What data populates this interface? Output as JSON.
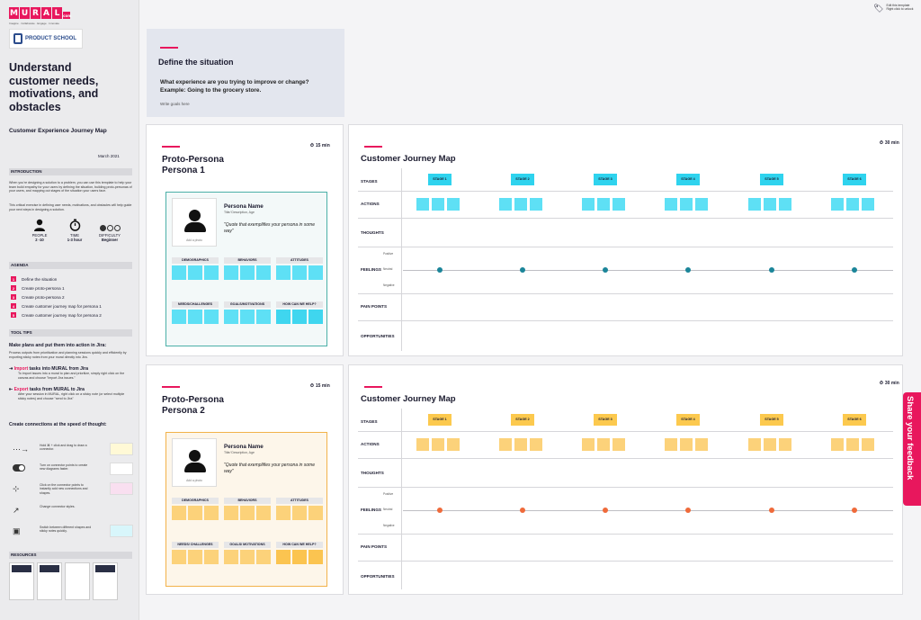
{
  "colors": {
    "accent": "#e8175d",
    "cyan": "#5ee0f5",
    "yellow": "#fcd27a",
    "teal": "#1b8599",
    "orange": "#ef6a3a"
  },
  "sidebar": {
    "logo_letters": [
      "M",
      "U",
      "R",
      "A",
      "L"
    ],
    "logo_suffix": ".com",
    "tagline": "Imagine · Collaborate · Engage · Innovate",
    "partner": "PRODUCT SCHOOL",
    "title": "Understand customer needs, motivations, and obstacles",
    "subtitle": "Customer Experience Journey Map",
    "date": "March 2021",
    "intro_header": "INTRODUCTION",
    "intro_p1": "When you're designing a solution to a problem, you can use this template to help your team build empathy for your users by defining the situation, building proto-personas of your users, and mapping out stages of the situation your users face.",
    "intro_p2": "This critical exercise in defining user needs, motivations, and obstacles will help guide your next steps in designing a solution.",
    "stats": [
      {
        "icon": "person-icon",
        "label": "PEOPLE",
        "value": "2 -10"
      },
      {
        "icon": "stopwatch-icon",
        "label": "TIME",
        "value": "1-3 hour"
      },
      {
        "icon": "difficulty-icon",
        "label": "DIFFICULTY",
        "value": "Beginner"
      }
    ],
    "agenda_header": "AGENDA",
    "agenda": [
      {
        "num": "1",
        "text": "Define the situation"
      },
      {
        "num": "2",
        "text": "Create proto-persona 1"
      },
      {
        "num": "3",
        "text": "Create proto-persona 2"
      },
      {
        "num": "4",
        "text": "Create customer journey map for persona 1"
      },
      {
        "num": "5",
        "text": "Create customer journey map for persona 2"
      }
    ],
    "tooltips_header": "TOOL TIPS",
    "jira_title": "Make plans and put them into action in Jira:",
    "jira_desc": "Process outputs from prioritization and planning sessions quickly and efficiently by exporting sticky notes from your mural directly into Jira.",
    "import_pink": "Import",
    "import_rest": " tasks into MURAL from Jira",
    "import_desc": "To import issues into a mural to plan and prioritize, simply right click on the canvas and choose \"Import Jira issues.\"",
    "export_pink": "Export",
    "export_rest": " tasks from MURAL to Jira",
    "export_desc": "After your session in MURAL, right click on a sticky note (or select multiple sticky notes) and choose \"send to Jira\"",
    "connections_title": "Create connections at the speed of thought:",
    "connections": [
      {
        "icon": "connector-icon",
        "text": "Hold ⌘ + click and drag to draw a connector."
      },
      {
        "icon": "toggle-icon",
        "text": "Turn on connector points to create new diagrams faster."
      },
      {
        "icon": "connector-points-icon",
        "text": "Click on the connector points to instantly add new connections and shapes."
      },
      {
        "icon": "connector-style-icon",
        "text": "Change connector styles."
      },
      {
        "icon": "shapes-icon",
        "text": "Switch between different shapes and sticky notes quickly."
      }
    ],
    "resources_header": "RESOURCES"
  },
  "panel1": {
    "badge": "1",
    "title": "Define the situation",
    "question": "What experience are you trying to improve or change? Example: Going to the grocery store.",
    "hint": "Write goals here"
  },
  "personas": [
    {
      "badge": "2",
      "timer": "15 min",
      "title_line1": "Proto-Persona",
      "title_line2": "Persona 1",
      "name": "Persona Name",
      "role": "Title/ Description, Age",
      "quote": "\"Quote that exemplifies your persona in some way\"",
      "add_photo": "Add a photo",
      "groups": [
        "DEMOGRAPHICS",
        "BEHAVIORS",
        "ATTITUDES",
        "NEEDS/CHALLENGES",
        "GOALS/MOTIVATIONS",
        "HOW CAN WE HELP?"
      ]
    },
    {
      "badge": "3",
      "timer": "15 min",
      "title_line1": "Proto-Persona",
      "title_line2": "Persona 2",
      "name": "Persona Name",
      "role": "Title/ Description, Age",
      "quote": "\"Quote that exemplifies your persona in some way\"",
      "add_photo": "Add a photo",
      "groups": [
        "DEMOGRAPHICS",
        "BEHAVIORS",
        "ATTITUDES",
        "NEEDS/ CHALLENGES",
        "GOALS/ MOTIVATIONS",
        "HOW CAN WE HELP?"
      ]
    }
  ],
  "journeys": [
    {
      "badge": "4",
      "timer": "30 min",
      "title": "Customer Journey Map",
      "rows": {
        "stages": "STAGES",
        "actions": "ACTIONS",
        "thoughts": "THOUGHTS",
        "feelings": "FEELINGS",
        "pain_points": "PAIN POINTS",
        "opportunities": "OPPORTUNITIES"
      },
      "scale": {
        "positive": "Positive",
        "neutral": "Neutral",
        "negative": "Negative"
      },
      "stages": [
        "STAGE 1",
        "STAGE 2",
        "STAGE 3",
        "STAGE 4",
        "STAGE 5",
        "STAGE 6"
      ]
    },
    {
      "badge": "5",
      "timer": "30 min",
      "title": "Customer Journey Map",
      "rows": {
        "stages": "STAGES",
        "actions": "ACTIONS",
        "thoughts": "THOUGHTS",
        "feelings": "FEELINGS",
        "pain_points": "PAIN POINTS",
        "opportunities": "OPPORTUNITIES"
      },
      "scale": {
        "positive": "Positive",
        "neutral": "Neutral",
        "negative": "Negative"
      },
      "stages": [
        "STAGE 1",
        "STAGE 2",
        "STAGE 3",
        "STAGE 4",
        "STAGE 5",
        "STAGE 6"
      ]
    }
  ],
  "edit_template": {
    "line1": "Edit this template",
    "line2": "Right click to unlock"
  },
  "feedback": "Share your feedback"
}
